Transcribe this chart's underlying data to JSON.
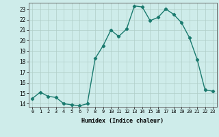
{
  "x": [
    0,
    1,
    2,
    3,
    4,
    5,
    6,
    7,
    8,
    9,
    10,
    11,
    12,
    13,
    14,
    15,
    16,
    17,
    18,
    19,
    20,
    21,
    22,
    23
  ],
  "y": [
    14.5,
    15.1,
    14.7,
    14.6,
    14.0,
    13.9,
    13.8,
    14.0,
    18.3,
    19.5,
    21.0,
    20.4,
    21.1,
    23.3,
    23.2,
    21.9,
    22.2,
    23.0,
    22.5,
    21.7,
    20.3,
    18.2,
    15.3,
    15.2
  ],
  "xlabel": "Humidex (Indice chaleur)",
  "ylabel": "",
  "title": "",
  "line_color": "#1a7a6e",
  "marker": "D",
  "marker_size": 2.2,
  "bg_color": "#ceecea",
  "grid_color": "#b0cec8",
  "tick_label_color": "#000000",
  "ylim": [
    13.7,
    23.6
  ],
  "xlim": [
    -0.5,
    23.5
  ],
  "yticks": [
    14,
    15,
    16,
    17,
    18,
    19,
    20,
    21,
    22,
    23
  ],
  "xticks": [
    0,
    1,
    2,
    3,
    4,
    5,
    6,
    7,
    8,
    9,
    10,
    11,
    12,
    13,
    14,
    15,
    16,
    17,
    18,
    19,
    20,
    21,
    22,
    23
  ]
}
